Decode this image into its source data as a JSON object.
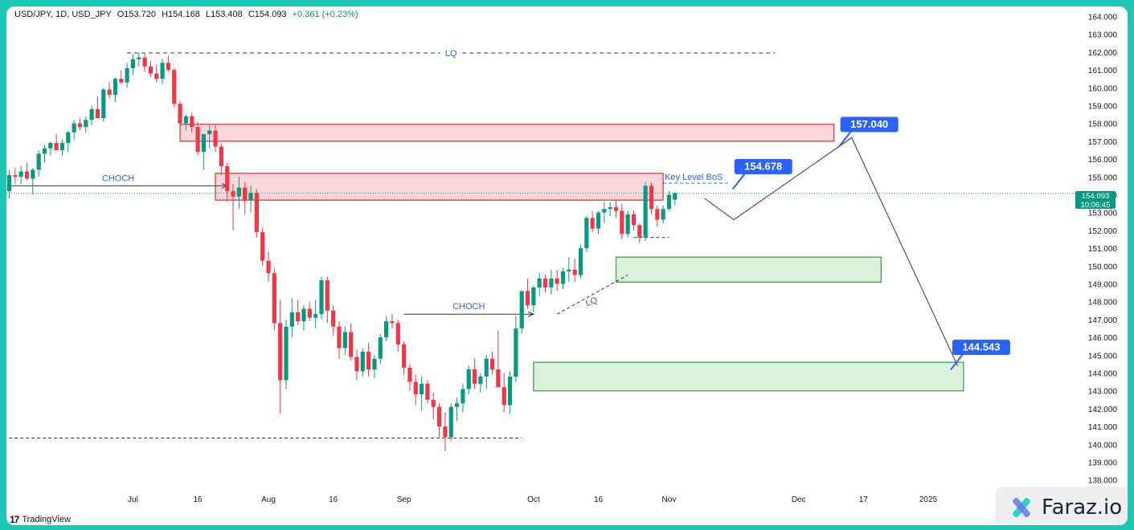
{
  "header": {
    "symbol": "USD/JPY, 1D, USD_JPY",
    "open_label": "O",
    "open": "153.720",
    "high_label": "H",
    "high": "154.168",
    "low_label": "L",
    "low": "153.408",
    "close_label": "C",
    "close": "154.093",
    "change": "+0.361 (+0.23%)"
  },
  "last_price": {
    "price": "154.093",
    "countdown": "10:06:45"
  },
  "branding": {
    "tradingview": "TradingView",
    "watermark": "Faraz.io"
  },
  "colors": {
    "up": "#089981",
    "down": "#f23645",
    "supply_fill": "#f8d7da",
    "supply_border": "#e53935",
    "demand_fill": "#dcf1d9",
    "demand_border": "#43a047",
    "label_blue": "#2962ff",
    "accent": "#1ec6b4"
  },
  "chart_data": {
    "type": "candlestick",
    "timeframe": "1D",
    "ylim": [
      137.6,
      164.3
    ],
    "y_ticks": [
      "138.000",
      "139.000",
      "140.000",
      "141.000",
      "142.000",
      "143.000",
      "144.000",
      "145.000",
      "146.000",
      "147.000",
      "148.000",
      "149.000",
      "150.000",
      "151.000",
      "152.000",
      "153.000",
      "154.000",
      "155.000",
      "156.000",
      "157.000",
      "158.000",
      "159.000",
      "160.000",
      "161.000",
      "162.000",
      "163.000",
      "164.000"
    ],
    "x_ticks": [
      {
        "label": "Jul",
        "bar": 21
      },
      {
        "label": "16",
        "bar": 32
      },
      {
        "label": "Aug",
        "bar": 44
      },
      {
        "label": "16",
        "bar": 55
      },
      {
        "label": "Sep",
        "bar": 67
      },
      {
        "label": "Oct",
        "bar": 89
      },
      {
        "label": "16",
        "bar": 100
      },
      {
        "label": "Nov",
        "bar": 112
      },
      {
        "label": "Dec",
        "bar": 134
      },
      {
        "label": "17",
        "bar": 145
      },
      {
        "label": "2025",
        "bar": 156
      }
    ],
    "candles": [
      [
        154.2,
        155.4,
        153.8,
        155.1
      ],
      [
        155.1,
        155.5,
        154.6,
        155.0
      ],
      [
        155.0,
        155.6,
        154.6,
        155.3
      ],
      [
        155.3,
        155.8,
        154.8,
        154.9
      ],
      [
        154.9,
        155.5,
        154.0,
        155.4
      ],
      [
        155.4,
        156.5,
        155.0,
        156.3
      ],
      [
        156.3,
        156.8,
        155.8,
        156.6
      ],
      [
        156.6,
        157.0,
        156.2,
        156.9
      ],
      [
        156.9,
        157.4,
        156.5,
        156.5
      ],
      [
        156.5,
        157.1,
        156.2,
        156.9
      ],
      [
        156.9,
        157.6,
        156.4,
        157.5
      ],
      [
        157.5,
        158.2,
        157.1,
        158.0
      ],
      [
        158.0,
        158.3,
        157.6,
        157.8
      ],
      [
        157.8,
        158.4,
        157.5,
        158.2
      ],
      [
        158.2,
        159.0,
        157.9,
        158.8
      ],
      [
        158.8,
        159.5,
        158.4,
        158.3
      ],
      [
        158.3,
        160.0,
        158.1,
        159.9
      ],
      [
        159.9,
        160.3,
        159.4,
        159.6
      ],
      [
        159.6,
        160.6,
        159.2,
        160.5
      ],
      [
        160.5,
        161.0,
        160.2,
        160.3
      ],
      [
        160.3,
        161.4,
        160.0,
        161.1
      ],
      [
        161.1,
        161.9,
        160.7,
        161.6
      ],
      [
        161.6,
        161.95,
        161.2,
        161.7
      ],
      [
        161.7,
        161.9,
        160.9,
        161.2
      ],
      [
        161.2,
        161.5,
        160.6,
        160.8
      ],
      [
        160.8,
        161.3,
        160.3,
        160.5
      ],
      [
        160.5,
        161.6,
        160.2,
        161.4
      ],
      [
        161.4,
        161.8,
        160.9,
        161.0
      ],
      [
        161.0,
        161.1,
        158.9,
        159.1
      ],
      [
        159.1,
        159.3,
        157.6,
        158.0
      ],
      [
        158.0,
        158.5,
        157.6,
        158.4
      ],
      [
        158.4,
        158.6,
        157.5,
        157.8
      ],
      [
        157.8,
        158.1,
        156.2,
        156.4
      ],
      [
        156.4,
        157.4,
        155.4,
        157.4
      ],
      [
        157.4,
        157.9,
        156.6,
        157.6
      ],
      [
        157.6,
        157.9,
        156.4,
        156.7
      ],
      [
        156.7,
        156.9,
        155.1,
        155.6
      ],
      [
        155.6,
        155.8,
        153.6,
        154.2
      ],
      [
        154.2,
        154.6,
        152.0,
        153.9
      ],
      [
        153.9,
        155.0,
        153.2,
        154.4
      ],
      [
        154.4,
        154.7,
        152.9,
        153.7
      ],
      [
        153.7,
        154.5,
        153.0,
        154.1
      ],
      [
        154.1,
        154.3,
        151.6,
        151.9
      ],
      [
        151.9,
        152.2,
        150.0,
        150.3
      ],
      [
        150.3,
        150.8,
        149.1,
        149.6
      ],
      [
        149.6,
        149.9,
        146.4,
        146.8
      ],
      [
        146.8,
        148.1,
        141.7,
        143.6
      ],
      [
        143.6,
        147.0,
        143.1,
        146.6
      ],
      [
        146.6,
        148.2,
        146.0,
        147.4
      ],
      [
        147.4,
        148.1,
        146.7,
        146.9
      ],
      [
        146.9,
        147.8,
        146.4,
        147.6
      ],
      [
        147.6,
        148.0,
        146.9,
        147.1
      ],
      [
        147.1,
        148.1,
        146.5,
        147.3
      ],
      [
        147.3,
        149.4,
        147.0,
        149.2
      ],
      [
        149.2,
        149.4,
        146.8,
        147.5
      ],
      [
        147.5,
        147.8,
        146.1,
        146.6
      ],
      [
        146.6,
        146.9,
        144.8,
        145.4
      ],
      [
        145.4,
        146.6,
        145.0,
        146.3
      ],
      [
        146.3,
        146.8,
        144.7,
        144.9
      ],
      [
        144.9,
        145.3,
        143.6,
        144.1
      ],
      [
        144.1,
        145.4,
        143.8,
        145.2
      ],
      [
        145.2,
        145.7,
        143.8,
        144.2
      ],
      [
        144.2,
        145.0,
        143.7,
        144.8
      ],
      [
        144.8,
        146.2,
        144.5,
        146.0
      ],
      [
        146.0,
        147.2,
        145.8,
        146.9
      ],
      [
        146.9,
        147.3,
        146.5,
        146.8
      ],
      [
        146.8,
        147.0,
        145.2,
        145.6
      ],
      [
        145.6,
        145.8,
        143.9,
        144.3
      ],
      [
        144.3,
        144.5,
        143.0,
        143.5
      ],
      [
        143.5,
        143.9,
        142.2,
        142.8
      ],
      [
        142.8,
        143.8,
        141.9,
        143.4
      ],
      [
        143.4,
        143.6,
        142.3,
        142.5
      ],
      [
        142.5,
        142.9,
        141.4,
        142.1
      ],
      [
        142.1,
        142.3,
        140.4,
        141.0
      ],
      [
        141.0,
        141.8,
        139.6,
        140.4
      ],
      [
        140.4,
        142.3,
        140.2,
        142.1
      ],
      [
        142.1,
        142.6,
        141.3,
        142.3
      ],
      [
        142.3,
        143.4,
        141.8,
        143.1
      ],
      [
        143.1,
        144.4,
        142.8,
        144.2
      ],
      [
        144.2,
        144.8,
        143.1,
        143.4
      ],
      [
        143.4,
        144.0,
        142.9,
        143.8
      ],
      [
        143.8,
        145.0,
        143.1,
        144.8
      ],
      [
        144.8,
        145.2,
        143.9,
        144.2
      ],
      [
        144.2,
        146.4,
        143.2,
        143.2
      ],
      [
        143.2,
        144.0,
        141.8,
        142.2
      ],
      [
        142.2,
        144.1,
        141.7,
        143.8
      ],
      [
        143.8,
        147.2,
        143.5,
        146.5
      ],
      [
        146.5,
        148.6,
        146.2,
        148.6
      ],
      [
        148.6,
        149.3,
        147.6,
        147.8
      ],
      [
        147.8,
        148.9,
        147.4,
        148.8
      ],
      [
        148.8,
        149.6,
        148.3,
        149.3
      ],
      [
        149.3,
        149.5,
        148.5,
        148.8
      ],
      [
        148.8,
        149.8,
        148.4,
        149.3
      ],
      [
        149.3,
        149.8,
        148.6,
        149.0
      ],
      [
        149.0,
        149.9,
        148.7,
        149.7
      ],
      [
        149.7,
        150.5,
        149.1,
        149.8
      ],
      [
        149.8,
        150.4,
        149.1,
        149.5
      ],
      [
        149.5,
        151.2,
        149.3,
        151.0
      ],
      [
        151.0,
        152.8,
        150.8,
        152.7
      ],
      [
        152.7,
        153.1,
        151.9,
        152.1
      ],
      [
        152.1,
        153.1,
        151.8,
        153.0
      ],
      [
        153.0,
        153.6,
        152.4,
        153.2
      ],
      [
        153.2,
        153.6,
        152.8,
        153.3
      ],
      [
        153.3,
        153.7,
        152.7,
        153.1
      ],
      [
        153.1,
        153.5,
        151.5,
        151.8
      ],
      [
        151.8,
        153.1,
        151.6,
        152.9
      ],
      [
        152.9,
        153.1,
        152.0,
        152.3
      ],
      [
        152.3,
        152.4,
        151.3,
        151.6
      ],
      [
        151.6,
        154.7,
        151.4,
        154.5
      ],
      [
        154.5,
        154.7,
        152.9,
        153.2
      ],
      [
        153.2,
        153.4,
        152.2,
        152.6
      ],
      [
        152.6,
        153.4,
        152.4,
        153.2
      ],
      [
        153.2,
        154.2,
        153.1,
        154.0
      ],
      [
        153.72,
        154.168,
        153.408,
        154.093
      ]
    ],
    "zones": [
      {
        "type": "supply",
        "from_bar": 29,
        "to_bar": 140,
        "low": 157.0,
        "high": 157.95
      },
      {
        "type": "supply",
        "from_bar": 35,
        "to_bar": 111,
        "low": 153.7,
        "high": 155.2
      },
      {
        "type": "demand",
        "from_bar": 103,
        "to_bar": 148,
        "low": 149.1,
        "high": 150.5
      },
      {
        "type": "demand",
        "from_bar": 89,
        "to_bar": 162,
        "low": 143.0,
        "high": 144.6
      }
    ],
    "annotations": [
      {
        "type": "hline_dashed",
        "label": "LQ",
        "price": 161.95,
        "from_bar": 20,
        "to_bar": 130
      },
      {
        "type": "hline_dashed",
        "label": "",
        "price": 140.35,
        "from_bar": -1,
        "to_bar": 87
      },
      {
        "type": "arrow",
        "label": "CHOCH",
        "price": 154.5,
        "from_bar": 0,
        "to_bar": 37
      },
      {
        "type": "arrow",
        "label": "CHOCH",
        "price": 147.3,
        "from_bar": 67,
        "to_bar": 89
      },
      {
        "type": "trendline_dashed",
        "label": "LQ",
        "from_bar": 93,
        "from_price": 147.3,
        "to_bar": 105,
        "to_price": 149.5
      },
      {
        "type": "hline_dashed",
        "label": "Key Level BoS",
        "price": 154.65,
        "from_bar": 111,
        "to_bar": 122
      },
      {
        "type": "hline_dashed",
        "label": "",
        "price": 151.6,
        "from_bar": 106,
        "to_bar": 112
      }
    ],
    "projection": {
      "points": [
        [
          118,
          153.8
        ],
        [
          123,
          152.6
        ],
        [
          143,
          157.2
        ],
        [
          161,
          144.4
        ]
      ],
      "targets": [
        {
          "label": "154.678",
          "price": 154.678,
          "bar": 128
        },
        {
          "label": "157.040",
          "price": 157.04,
          "bar": 146
        },
        {
          "label": "144.543",
          "price": 144.543,
          "bar": 165
        }
      ]
    },
    "last_price": 154.093,
    "grid": false
  }
}
